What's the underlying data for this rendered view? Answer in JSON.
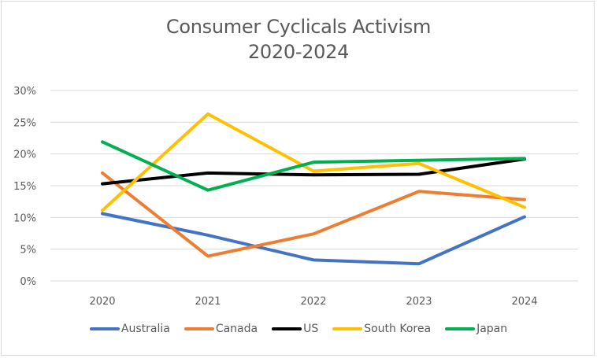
{
  "chart_data": {
    "type": "line",
    "title": "Consumer Cyclicals Activism",
    "subtitle": "2020-2024",
    "xlabel": "",
    "ylabel": "",
    "categories": [
      "2020",
      "2021",
      "2022",
      "2023",
      "2024"
    ],
    "ylim": [
      0,
      30
    ],
    "yticks": [
      "0%",
      "5%",
      "10%",
      "15%",
      "20%",
      "25%",
      "30%"
    ],
    "ytick_values": [
      0,
      5,
      10,
      15,
      20,
      25,
      30
    ],
    "grid": true,
    "legend_position": "bottom",
    "series": [
      {
        "name": "Australia",
        "color": "#4472c4",
        "values": [
          10.6,
          7.2,
          3.3,
          2.7,
          10.1
        ]
      },
      {
        "name": "Canada",
        "color": "#ed7d31",
        "values": [
          17.0,
          3.9,
          7.4,
          14.1,
          12.8
        ]
      },
      {
        "name": "US",
        "color": "#000000",
        "values": [
          15.3,
          17.0,
          16.7,
          16.8,
          19.2
        ]
      },
      {
        "name": "South Korea",
        "color": "#ffc000",
        "values": [
          11.1,
          26.3,
          17.3,
          18.5,
          11.6
        ]
      },
      {
        "name": "Japan",
        "color": "#00b050",
        "values": [
          21.9,
          14.3,
          18.7,
          19.0,
          19.3
        ]
      }
    ]
  }
}
